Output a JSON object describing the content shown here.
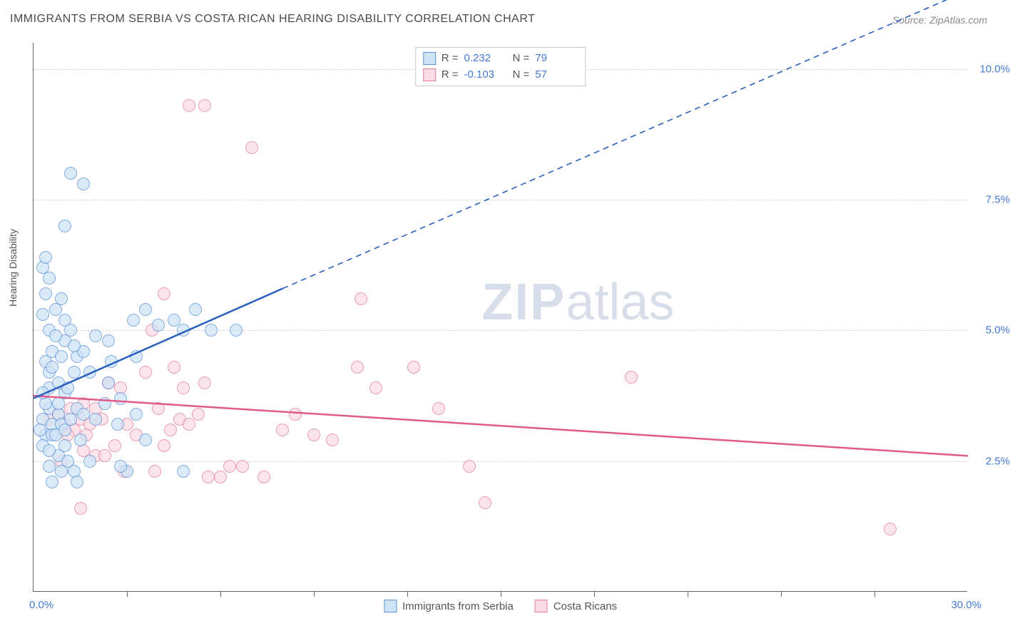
{
  "title": "IMMIGRANTS FROM SERBIA VS COSTA RICAN HEARING DISABILITY CORRELATION CHART",
  "source": "Source: ZipAtlas.com",
  "ylabel": "Hearing Disability",
  "watermark_bold": "ZIP",
  "watermark_light": "atlas",
  "chart": {
    "type": "scatter-correlation",
    "background_color": "#ffffff",
    "grid_color": "#d6d6d6",
    "axis_color": "#666666",
    "tick_color": "#447ad4",
    "xlim": [
      0,
      30
    ],
    "ylim": [
      0,
      10.5
    ],
    "x_tick_positions": [
      3,
      6,
      9,
      12,
      15,
      18,
      21,
      24,
      27
    ],
    "y_grid": [
      {
        "v": 2.5,
        "label": "2.5%"
      },
      {
        "v": 5.0,
        "label": "5.0%"
      },
      {
        "v": 7.5,
        "label": "7.5%"
      },
      {
        "v": 10.0,
        "label": "10.0%"
      }
    ],
    "x_corner_left": "0.0%",
    "x_corner_right": "30.0%",
    "marker_radius": 9,
    "marker_stroke_width": 1.2,
    "series": {
      "serbia": {
        "label": "Immigrants from Serbia",
        "fill": "#cfe3f7",
        "stroke": "#5a93d6",
        "line_color": "#2a5fbf",
        "R": "0.232",
        "N": "79",
        "trend": {
          "x1": 0,
          "y1": 3.7,
          "x2_solid": 8,
          "y2_solid": 5.8,
          "x2_dash": 30,
          "y2_dash": 11.5
        },
        "points": [
          [
            0.3,
            3.3
          ],
          [
            0.4,
            3.0
          ],
          [
            0.5,
            3.5
          ],
          [
            0.6,
            3.2
          ],
          [
            0.4,
            3.6
          ],
          [
            0.6,
            3.0
          ],
          [
            0.2,
            3.1
          ],
          [
            0.8,
            3.4
          ],
          [
            0.7,
            3.0
          ],
          [
            0.9,
            3.2
          ],
          [
            0.5,
            3.9
          ],
          [
            0.3,
            3.8
          ],
          [
            0.5,
            4.2
          ],
          [
            0.8,
            4.0
          ],
          [
            1.0,
            3.8
          ],
          [
            1.2,
            3.3
          ],
          [
            1.1,
            3.9
          ],
          [
            1.3,
            4.2
          ],
          [
            0.4,
            4.4
          ],
          [
            0.6,
            4.6
          ],
          [
            0.9,
            4.5
          ],
          [
            1.0,
            4.8
          ],
          [
            1.4,
            4.5
          ],
          [
            0.5,
            5.0
          ],
          [
            0.7,
            4.9
          ],
          [
            1.0,
            5.2
          ],
          [
            0.3,
            5.3
          ],
          [
            1.2,
            5.0
          ],
          [
            0.4,
            5.7
          ],
          [
            0.9,
            5.6
          ],
          [
            0.5,
            6.0
          ],
          [
            0.3,
            6.2
          ],
          [
            0.8,
            2.6
          ],
          [
            0.5,
            2.4
          ],
          [
            0.9,
            2.3
          ],
          [
            0.6,
            2.1
          ],
          [
            1.1,
            2.5
          ],
          [
            1.3,
            2.3
          ],
          [
            1.0,
            2.8
          ],
          [
            1.5,
            2.9
          ],
          [
            1.4,
            3.5
          ],
          [
            1.6,
            3.4
          ],
          [
            2.0,
            3.3
          ],
          [
            1.6,
            4.6
          ],
          [
            1.8,
            4.2
          ],
          [
            2.4,
            4.0
          ],
          [
            2.3,
            3.6
          ],
          [
            2.8,
            3.7
          ],
          [
            2.5,
            4.4
          ],
          [
            2.7,
            3.2
          ],
          [
            3.3,
            3.4
          ],
          [
            3.3,
            4.5
          ],
          [
            3.0,
            2.3
          ],
          [
            3.6,
            2.9
          ],
          [
            3.2,
            5.2
          ],
          [
            3.6,
            5.4
          ],
          [
            4.0,
            5.1
          ],
          [
            4.5,
            5.2
          ],
          [
            4.8,
            5.0
          ],
          [
            5.2,
            5.4
          ],
          [
            5.7,
            5.0
          ],
          [
            6.5,
            5.0
          ],
          [
            1.0,
            7.0
          ],
          [
            1.2,
            8.0
          ],
          [
            1.6,
            7.8
          ],
          [
            2.0,
            4.9
          ],
          [
            2.4,
            4.8
          ],
          [
            2.8,
            2.4
          ],
          [
            1.8,
            2.5
          ],
          [
            1.4,
            2.1
          ],
          [
            4.8,
            2.3
          ],
          [
            0.3,
            2.8
          ],
          [
            0.5,
            2.7
          ],
          [
            0.6,
            4.3
          ],
          [
            0.8,
            3.6
          ],
          [
            1.0,
            3.1
          ],
          [
            1.3,
            4.7
          ],
          [
            0.4,
            6.4
          ],
          [
            0.7,
            5.4
          ]
        ]
      },
      "costarica": {
        "label": "Costa Ricans",
        "fill": "#fadbe3",
        "stroke": "#e47da1",
        "line_color": "#e05a8a",
        "R": "-0.103",
        "N": "57",
        "trend": {
          "x1": 0,
          "y1": 3.75,
          "x2": 30,
          "y2": 2.6
        },
        "points": [
          [
            0.5,
            3.3
          ],
          [
            0.8,
            3.4
          ],
          [
            1.0,
            3.2
          ],
          [
            1.2,
            3.5
          ],
          [
            1.5,
            3.3
          ],
          [
            1.3,
            3.1
          ],
          [
            1.6,
            3.6
          ],
          [
            1.8,
            3.2
          ],
          [
            2.0,
            3.5
          ],
          [
            2.2,
            3.3
          ],
          [
            2.4,
            4.0
          ],
          [
            2.8,
            3.9
          ],
          [
            1.7,
            3.0
          ],
          [
            1.1,
            3.0
          ],
          [
            1.6,
            2.7
          ],
          [
            2.0,
            2.6
          ],
          [
            2.3,
            2.6
          ],
          [
            2.6,
            2.8
          ],
          [
            2.9,
            2.3
          ],
          [
            3.3,
            3.0
          ],
          [
            3.6,
            4.2
          ],
          [
            4.0,
            3.5
          ],
          [
            4.4,
            3.1
          ],
          [
            4.7,
            3.3
          ],
          [
            5.0,
            3.2
          ],
          [
            5.3,
            3.4
          ],
          [
            5.5,
            4.0
          ],
          [
            5.6,
            2.2
          ],
          [
            6.0,
            2.2
          ],
          [
            6.3,
            2.4
          ],
          [
            6.7,
            2.4
          ],
          [
            7.4,
            2.2
          ],
          [
            8.0,
            3.1
          ],
          [
            8.4,
            3.4
          ],
          [
            9.0,
            3.0
          ],
          [
            9.6,
            2.9
          ],
          [
            10.4,
            4.3
          ],
          [
            11.0,
            3.9
          ],
          [
            12.2,
            4.3
          ],
          [
            13.0,
            3.5
          ],
          [
            14.0,
            2.4
          ],
          [
            14.5,
            1.7
          ],
          [
            3.8,
            5.0
          ],
          [
            4.2,
            5.7
          ],
          [
            4.5,
            4.3
          ],
          [
            4.8,
            3.9
          ],
          [
            5.0,
            9.3
          ],
          [
            5.5,
            9.3
          ],
          [
            7.0,
            8.5
          ],
          [
            10.5,
            5.6
          ],
          [
            19.2,
            4.1
          ],
          [
            27.5,
            1.2
          ],
          [
            0.9,
            2.5
          ],
          [
            1.5,
            1.6
          ],
          [
            3.0,
            3.2
          ],
          [
            3.9,
            2.3
          ],
          [
            4.2,
            2.8
          ]
        ]
      }
    }
  },
  "legend_top_labels": {
    "R": "R =",
    "N": "N ="
  }
}
